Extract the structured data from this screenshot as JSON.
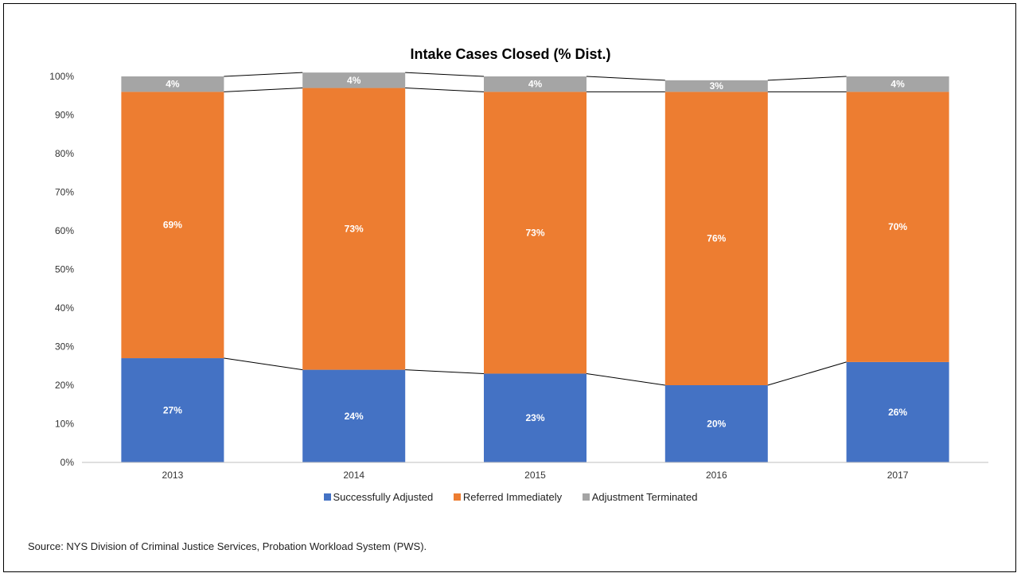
{
  "chart_data": {
    "type": "bar",
    "stacked": true,
    "title": "Intake Cases Closed (% Dist.)",
    "categories": [
      "2013",
      "2014",
      "2015",
      "2016",
      "2017"
    ],
    "series": [
      {
        "name": "Successfully Adjusted",
        "color": "#4472C4",
        "values": [
          27,
          24,
          23,
          20,
          26
        ],
        "labels": [
          "27%",
          "24%",
          "23%",
          "20%",
          "26%"
        ]
      },
      {
        "name": "Referred Immediately",
        "color": "#ED7D31",
        "values": [
          69,
          73,
          73,
          76,
          70
        ],
        "labels": [
          "69%",
          "73%",
          "73%",
          "76%",
          "70%"
        ]
      },
      {
        "name": "Adjustment Terminated",
        "color": "#A5A5A5",
        "values": [
          4,
          4,
          4,
          3,
          4
        ],
        "labels": [
          "4%",
          "4%",
          "4%",
          "3%",
          "4%"
        ]
      }
    ],
    "ylim": [
      0,
      100
    ],
    "yticks": [
      "0%",
      "10%",
      "20%",
      "30%",
      "40%",
      "50%",
      "60%",
      "70%",
      "80%",
      "90%",
      "100%"
    ],
    "series_lines": true,
    "legend_position": "bottom"
  },
  "source_note": "Source: NYS Division of Criminal Justice Services, Probation Workload System (PWS)."
}
